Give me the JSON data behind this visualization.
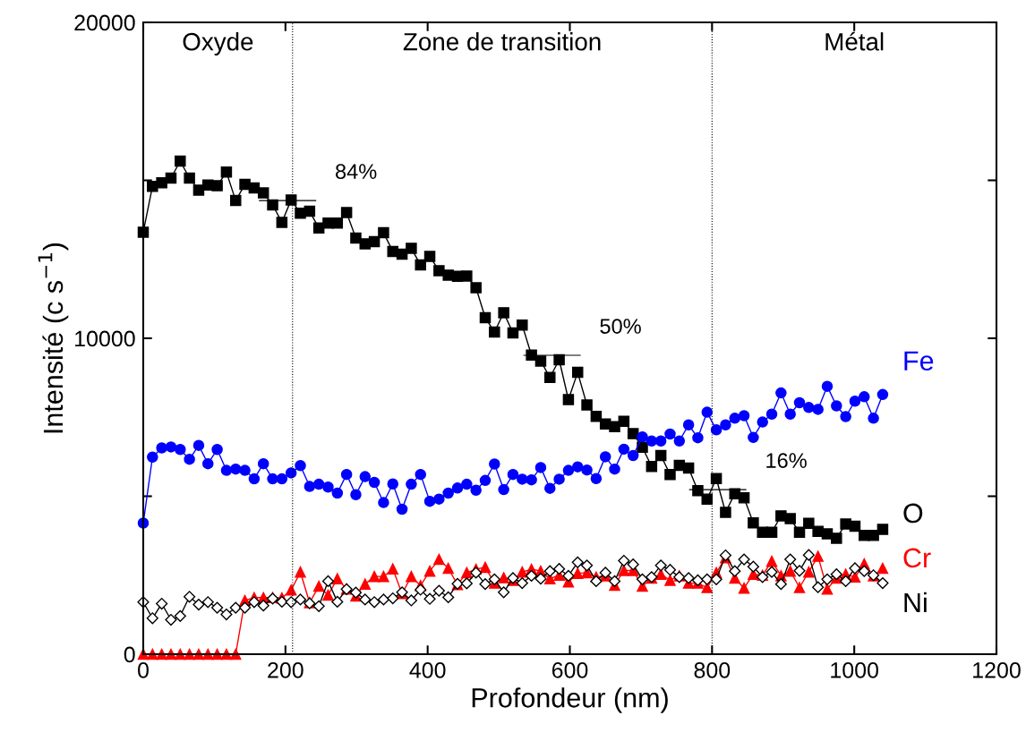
{
  "chart_data": {
    "type": "line",
    "xlabel": "Profondeur (nm)",
    "ylabel": "Intensité (c s$^{−1}$)",
    "x": [
      0,
      13,
      26,
      39,
      52,
      65,
      78,
      91,
      104,
      117,
      130,
      143,
      156,
      169,
      182,
      195,
      208,
      221,
      234,
      247,
      260,
      273,
      286,
      299,
      312,
      325,
      338,
      351,
      364,
      377,
      390,
      403,
      416,
      429,
      442,
      455,
      468,
      481,
      494,
      507,
      520,
      533,
      546,
      559,
      572,
      585,
      598,
      611,
      624,
      637,
      650,
      663,
      676,
      689,
      702,
      715,
      728,
      741,
      754,
      767,
      780,
      793,
      806,
      819,
      832,
      845,
      858,
      871,
      884,
      897,
      910,
      923,
      936,
      949,
      962,
      975,
      988,
      1001,
      1014,
      1027,
      1040
    ],
    "series": [
      {
        "name": "O",
        "color": "#000000",
        "marker": "square",
        "values": [
          13360,
          14810,
          14920,
          15070,
          15610,
          15070,
          14690,
          14850,
          14830,
          15260,
          14360,
          14870,
          14760,
          14600,
          14220,
          13670,
          14380,
          13960,
          14020,
          13490,
          13650,
          13650,
          13980,
          13170,
          12990,
          13060,
          13340,
          12750,
          12660,
          12850,
          12320,
          12590,
          12140,
          12000,
          11960,
          11970,
          11600,
          10650,
          10200,
          10810,
          10170,
          10420,
          9470,
          9280,
          8760,
          9320,
          8060,
          8920,
          7890,
          7530,
          7290,
          7200,
          7370,
          6980,
          6550,
          5940,
          6290,
          5690,
          5980,
          5890,
          5180,
          4910,
          5560,
          4490,
          5080,
          4950,
          4160,
          3860,
          3860,
          4380,
          4290,
          3860,
          4140,
          3890,
          3810,
          3670,
          4120,
          4050,
          3760,
          3760,
          3950
        ]
      },
      {
        "name": "Fe",
        "color": "#0000ff",
        "marker": "circle",
        "values": [
          4150,
          6240,
          6530,
          6560,
          6480,
          6170,
          6610,
          6030,
          6480,
          5820,
          5860,
          5820,
          5550,
          6030,
          5550,
          5550,
          5740,
          5970,
          5310,
          5380,
          5290,
          5100,
          5690,
          5050,
          5620,
          5440,
          4800,
          5390,
          4590,
          5380,
          5690,
          4840,
          4910,
          5100,
          5260,
          5380,
          5190,
          5500,
          6020,
          5210,
          5690,
          5540,
          5520,
          5910,
          5250,
          5540,
          5820,
          5930,
          5830,
          5560,
          6250,
          5860,
          6490,
          6290,
          6880,
          6750,
          6750,
          6970,
          6750,
          7260,
          6850,
          7660,
          7100,
          7260,
          7470,
          7550,
          6860,
          7350,
          7600,
          8270,
          7600,
          7960,
          7810,
          7750,
          8480,
          7860,
          7520,
          8010,
          8150,
          7470,
          8220
        ]
      },
      {
        "name": "Cr",
        "color": "#ff0000",
        "marker": "triangle",
        "values": [
          0,
          0,
          0,
          0,
          0,
          0,
          0,
          0,
          0,
          0,
          0,
          1700,
          1790,
          1790,
          1790,
          1780,
          2030,
          2600,
          1630,
          2150,
          1870,
          2390,
          2060,
          1840,
          2220,
          2460,
          2460,
          2700,
          1920,
          2460,
          2170,
          2630,
          3000,
          2720,
          2200,
          2580,
          2690,
          2750,
          2250,
          2420,
          2340,
          2600,
          2690,
          2630,
          2390,
          2500,
          2290,
          2560,
          2580,
          2440,
          2480,
          2180,
          2650,
          2650,
          2150,
          2410,
          2530,
          2340,
          2480,
          2250,
          2250,
          2110,
          2580,
          3050,
          2410,
          2090,
          2530,
          2500,
          2940,
          2480,
          2630,
          2110,
          2600,
          3100,
          2060,
          2410,
          2530,
          2440,
          2860,
          2480,
          2720
        ]
      },
      {
        "name": "Ni",
        "color": "#000000",
        "marker": "diamond",
        "values": [
          1650,
          1140,
          1600,
          1090,
          1210,
          1820,
          1570,
          1650,
          1470,
          1260,
          1470,
          1470,
          1650,
          1540,
          1760,
          1660,
          1650,
          1730,
          1610,
          1520,
          2310,
          1660,
          2060,
          1950,
          1730,
          1650,
          1730,
          1770,
          1960,
          1700,
          2040,
          1750,
          2010,
          1800,
          2230,
          2240,
          2580,
          2220,
          2370,
          1960,
          2410,
          2250,
          2480,
          2390,
          2630,
          2700,
          2480,
          2910,
          2810,
          2310,
          2580,
          2310,
          2960,
          2840,
          2370,
          2440,
          2810,
          2670,
          2440,
          2410,
          2340,
          2370,
          2370,
          3130,
          2630,
          3000,
          2770,
          2440,
          2600,
          2220,
          3000,
          2640,
          3140,
          2120,
          2370,
          2530,
          2310,
          2720,
          2630,
          2500,
          2250
        ]
      }
    ],
    "xlim": [
      0,
      1200
    ],
    "xticks": [
      0,
      200,
      400,
      600,
      800,
      1000,
      1200
    ],
    "ylim": [
      0,
      20000
    ],
    "yticks": [
      0,
      {
        "value": 5000,
        "label": null
      },
      10000,
      {
        "value": 15000,
        "label": null
      },
      20000
    ],
    "ref_lines": [
      {
        "axis": "x",
        "value": 210,
        "line_style": "dotted"
      },
      {
        "axis": "x",
        "value": 800,
        "line_style": "dotted"
      }
    ],
    "annotations": [
      "Oxyde",
      "Zone de transition",
      "Métal",
      {
        "text": "84%",
        "x": 203,
        "y": 14360
      },
      {
        "text": "50%",
        "x": 575,
        "y": 9460
      },
      {
        "text": "16%",
        "x": 808,
        "y": 5210
      }
    ],
    "grid": false,
    "legend": "right",
    "line_style": "solid"
  }
}
